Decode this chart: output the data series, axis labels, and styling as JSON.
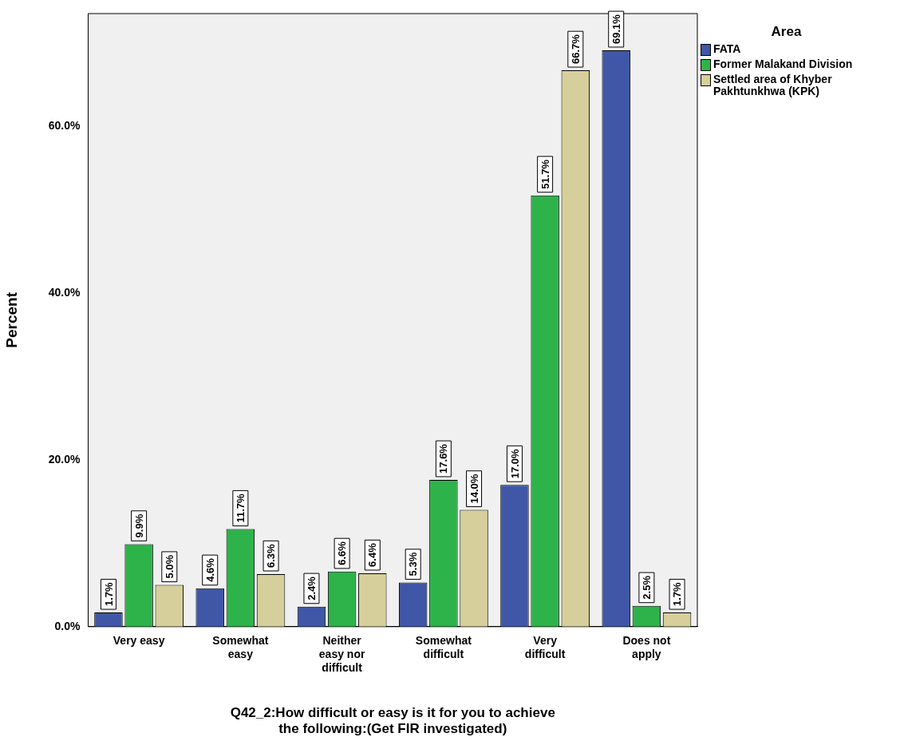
{
  "chart_data": {
    "type": "bar",
    "xlabel": "Q42_2:How difficult or easy is it for you to achieve the following:(Get FIR investigated)",
    "ylabel": "Percent",
    "legend_title": "Area",
    "legend": "right",
    "categories": [
      "Very easy",
      "Somewhat easy",
      "Neither easy nor difficult",
      "Somewhat difficult",
      "Very difficult",
      "Does not apply"
    ],
    "series": [
      {
        "name": "FATA",
        "color": "#3f57a6",
        "values": [
          1.7,
          4.6,
          2.4,
          5.3,
          17.0,
          69.1
        ],
        "value_labels": [
          "1.7%",
          "4.6%",
          "2.4%",
          "5.3%",
          "17.0%",
          "69.1%"
        ]
      },
      {
        "name": "Former Malakand Division",
        "color": "#2db34a",
        "values": [
          9.9,
          11.7,
          6.6,
          17.6,
          51.7,
          2.5
        ],
        "value_labels": [
          "9.9%",
          "11.7%",
          "6.6%",
          "17.6%",
          "51.7%",
          "2.5%"
        ]
      },
      {
        "name": "Settled area of Khyber Pakhtunkhwa (KPK)",
        "color": "#d6cf9b",
        "values": [
          5.0,
          6.3,
          6.4,
          14.0,
          66.7,
          1.7
        ],
        "value_labels": [
          "5.0%",
          "6.3%",
          "6.4%",
          "14.0%",
          "66.7%",
          "1.7%"
        ]
      }
    ],
    "ylim": [
      0,
      73.5
    ],
    "yticks": [
      {
        "value": 0,
        "label": "0.0%"
      },
      {
        "value": 20,
        "label": "20.0%"
      },
      {
        "value": 40,
        "label": "40.0%"
      },
      {
        "value": 60,
        "label": "60.0%"
      }
    ],
    "grid": false
  }
}
